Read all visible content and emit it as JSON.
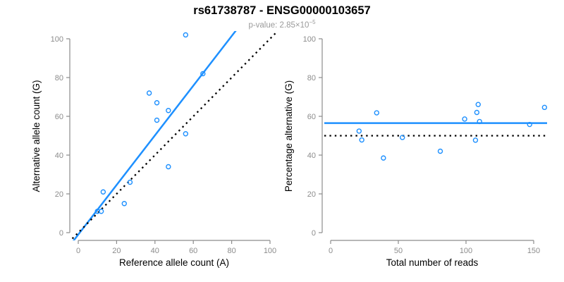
{
  "header": {
    "title": "rs61738787 - ENSG00000103657",
    "pvalue_prefix": "p-value: 2.85×10",
    "pvalue_exponent": "−5"
  },
  "colors": {
    "accent": "#1E90FF",
    "axis": "#8C8C8C",
    "tick_label": "#8C8C8C",
    "axis_title": "#000000",
    "reference": "#000000"
  },
  "chart_data": [
    {
      "type": "scatter",
      "name": "allele-counts-plot",
      "xlabel": "Reference allele count (A)",
      "ylabel": "Alternative allele count (G)",
      "xlim": [
        0,
        100
      ],
      "ylim": [
        0,
        100
      ],
      "xticks": [
        0,
        20,
        40,
        60,
        80,
        100
      ],
      "yticks": [
        0,
        20,
        40,
        60,
        80,
        100
      ],
      "grid": false,
      "legend": null,
      "points": [
        [
          56,
          102
        ],
        [
          65,
          82
        ],
        [
          37,
          72
        ],
        [
          41,
          67
        ],
        [
          47,
          63
        ],
        [
          41,
          58
        ],
        [
          56,
          51
        ],
        [
          47,
          34
        ],
        [
          27,
          26
        ],
        [
          13,
          21
        ],
        [
          24,
          15
        ],
        [
          10,
          11
        ],
        [
          12,
          11
        ]
      ],
      "lines": [
        {
          "name": "fit-line",
          "type": "linear",
          "slope": 1.28,
          "intercept": -1.0,
          "color": "accent",
          "style": "solid"
        },
        {
          "name": "identity-line",
          "type": "linear",
          "slope": 1.0,
          "intercept": 0.0,
          "color": "reference",
          "style": "dotted"
        }
      ]
    },
    {
      "type": "scatter",
      "name": "percentage-alternative-plot",
      "xlabel": "Total number of reads",
      "ylabel": "Percentage alternative (G)",
      "xlim": [
        0,
        150
      ],
      "ylim": [
        0,
        100
      ],
      "xticks": [
        0,
        50,
        100,
        150
      ],
      "yticks": [
        0,
        20,
        40,
        60,
        80,
        100
      ],
      "grid": false,
      "legend": null,
      "points": [
        [
          21,
          52.4
        ],
        [
          23,
          47.8
        ],
        [
          34,
          61.8
        ],
        [
          39,
          38.5
        ],
        [
          53,
          49.1
        ],
        [
          81,
          42.0
        ],
        [
          99,
          58.6
        ],
        [
          107,
          47.7
        ],
        [
          108,
          62.0
        ],
        [
          109,
          66.1
        ],
        [
          110,
          57.3
        ],
        [
          147,
          55.8
        ],
        [
          158,
          64.6
        ]
      ],
      "lines": [
        {
          "name": "mean-line",
          "type": "horizontal",
          "y": 56.5,
          "color": "accent",
          "style": "solid"
        },
        {
          "name": "null-line",
          "type": "horizontal",
          "y": 50.0,
          "color": "reference",
          "style": "dotted"
        }
      ]
    }
  ]
}
